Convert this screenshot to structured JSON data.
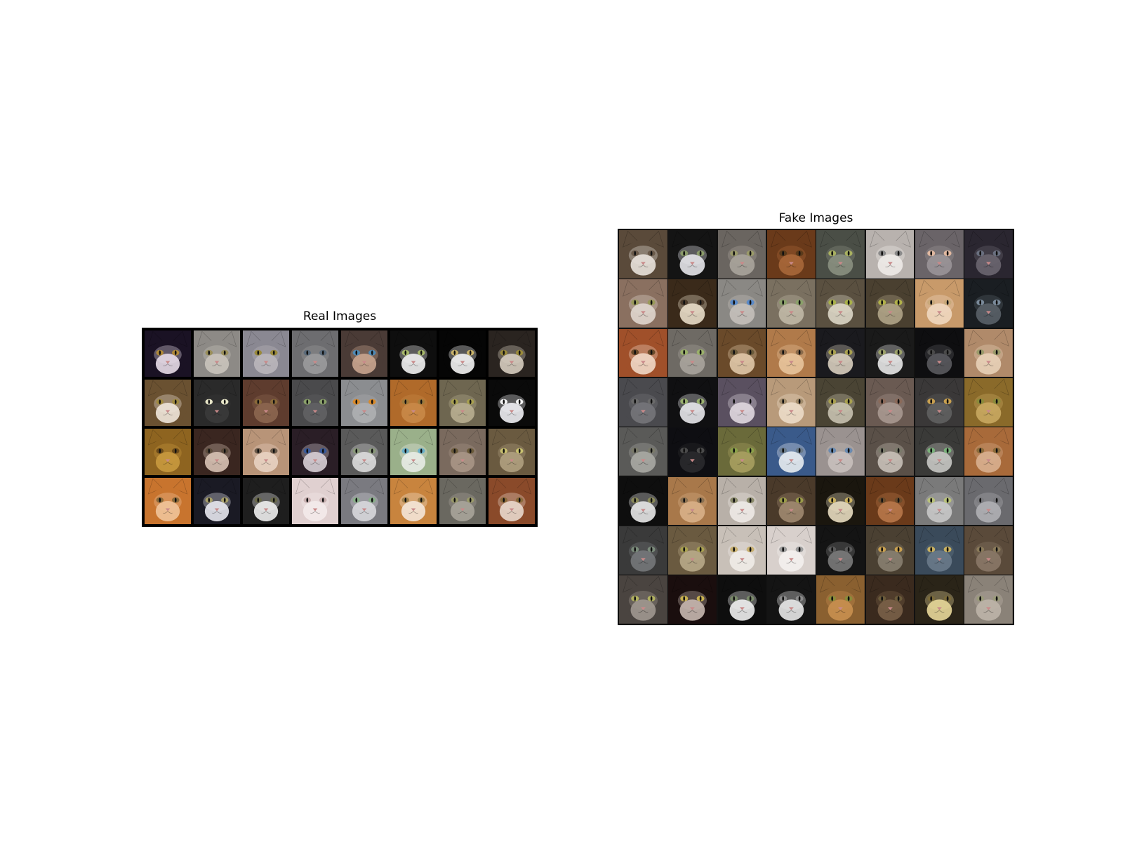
{
  "real": {
    "title": "Real Images",
    "cols": 8,
    "rows": 4,
    "tiles": [
      {
        "fur": "#1a1224",
        "face": "#e8dde8",
        "eye": "#b08a3a"
      },
      {
        "fur": "#8d8a86",
        "face": "#c9c3bb",
        "eye": "#9a8f5a"
      },
      {
        "fur": "#8a8892",
        "face": "#b9b6bb",
        "eye": "#9a8a3a"
      },
      {
        "fur": "#6d6d70",
        "face": "#9a9a9c",
        "eye": "#5a6a7a"
      },
      {
        "fur": "#4a3b36",
        "face": "#c9a58f",
        "eye": "#4f8ab5"
      },
      {
        "fur": "#0e0e0e",
        "face": "#f2f2f2",
        "eye": "#a7b86a"
      },
      {
        "fur": "#050505",
        "face": "#f4f4f4",
        "eye": "#c9b36a"
      },
      {
        "fur": "#2a2420",
        "face": "#d6cdbf",
        "eye": "#9a8a3a"
      },
      {
        "fur": "#6a5131",
        "face": "#efe6da",
        "eye": "#a08a40"
      },
      {
        "fur": "#2a2a2a",
        "face": "#3a3a3a",
        "eye": "#e8e6c8"
      },
      {
        "fur": "#5e3c2e",
        "face": "#8c6650",
        "eye": "#8a6a3a"
      },
      {
        "fur": "#4a4a4c",
        "face": "#626264",
        "eye": "#8aa06a"
      },
      {
        "fur": "#8b8d90",
        "face": "#aeb0b2",
        "eye": "#d98a2a"
      },
      {
        "fur": "#b06a2a",
        "face": "#c98a48",
        "eye": "#a07a3a"
      },
      {
        "fur": "#6e6650",
        "face": "#b8ae90",
        "eye": "#a8a050"
      },
      {
        "fur": "#0a0a0a",
        "face": "#f0f0f4",
        "eye": "#f4f4f4"
      },
      {
        "fur": "#8e6420",
        "face": "#c8993e",
        "eye": "#6a4a1a"
      },
      {
        "fur": "#3a2620",
        "face": "#d8c2b4",
        "eye": "#5a4a3a"
      },
      {
        "fur": "#b89478",
        "face": "#e8d2c2",
        "eye": "#6a5a4a"
      },
      {
        "fur": "#2a1e26",
        "face": "#d8cfd6",
        "eye": "#3a5a9a"
      },
      {
        "fur": "#5a5a5a",
        "face": "#dcdcdc",
        "eye": "#8a9a7a"
      },
      {
        "fur": "#9ab08a",
        "face": "#e8ece6",
        "eye": "#6ab0c8"
      },
      {
        "fur": "#7a6a5e",
        "face": "#a89686",
        "eye": "#6a5a3a"
      },
      {
        "fur": "#6a5a40",
        "face": "#b0a080",
        "eye": "#c8c070"
      },
      {
        "fur": "#c8742e",
        "face": "#f0c49a",
        "eye": "#8a6a3a"
      },
      {
        "fur": "#1a1a24",
        "face": "#e8e8f0",
        "eye": "#a8a06a"
      },
      {
        "fur": "#1e1e1e",
        "face": "#eeeeee",
        "eye": "#6a6a4a"
      },
      {
        "fur": "#e0d0d0",
        "face": "#f4eaea",
        "eye": "#c8b0b0"
      },
      {
        "fur": "#7a7a80",
        "face": "#d8d8dc",
        "eye": "#8ab08a"
      },
      {
        "fur": "#c8843e",
        "face": "#f4e6d8",
        "eye": "#a0804a"
      },
      {
        "fur": "#6a6860",
        "face": "#a8a49a",
        "eye": "#9a9a6a"
      },
      {
        "fur": "#8a4a2a",
        "face": "#e8d8cc",
        "eye": "#8a6a3a"
      }
    ]
  },
  "fake": {
    "title": "Fake Images",
    "cols": 8,
    "rows": 8,
    "tiles": [
      {
        "fur": "#5a4a3a",
        "face": "#e8e2dc",
        "eye": "#6a5a4a"
      },
      {
        "fur": "#141414",
        "face": "#e6e6ea",
        "eye": "#8a9a6a"
      },
      {
        "fur": "#6a6560",
        "face": "#aaa49c",
        "eye": "#9a9a6a"
      },
      {
        "fur": "#6a3a1a",
        "face": "#a8683a",
        "eye": "#5a3a1a"
      },
      {
        "fur": "#4a4e46",
        "face": "#8a9080",
        "eye": "#a8b060"
      },
      {
        "fur": "#b8b2ae",
        "face": "#eeeae8",
        "eye": "#8a8a8a"
      },
      {
        "fur": "#6a6468",
        "face": "#9a9498",
        "eye": "#e0b8a0"
      },
      {
        "fur": "#2a2630",
        "face": "#6a6670",
        "eye": "#6a7080"
      },
      {
        "fur": "#8a7060",
        "face": "#e0d6ce",
        "eye": "#9a9a5a"
      },
      {
        "fur": "#3a2a1a",
        "face": "#e8dcc8",
        "eye": "#4a3a2a"
      },
      {
        "fur": "#8a8884",
        "face": "#c4c0ba",
        "eye": "#5a8ac8"
      },
      {
        "fur": "#7a7060",
        "face": "#c0b8a6",
        "eye": "#8aa06a"
      },
      {
        "fur": "#5a5040",
        "face": "#dcd6c6",
        "eye": "#a8b04a"
      },
      {
        "fur": "#4a4030",
        "face": "#b0a488",
        "eye": "#b0b04a"
      },
      {
        "fur": "#c89a6a",
        "face": "#f0d8c0",
        "eye": "#c8a87a"
      },
      {
        "fur": "#1a1e22",
        "face": "#5a6068",
        "eye": "#7a8a9a"
      },
      {
        "fur": "#a0502a",
        "face": "#f0d8c6",
        "eye": "#6a4a2a"
      },
      {
        "fur": "#6e6a64",
        "face": "#a8a49c",
        "eye": "#9ab06a"
      },
      {
        "fur": "#6a4a2a",
        "face": "#e0c8a8",
        "eye": "#6a5a3a"
      },
      {
        "fur": "#b07a4a",
        "face": "#e8c49c",
        "eye": "#8a6a4a"
      },
      {
        "fur": "#1a1a1e",
        "face": "#d8cebe",
        "eye": "#a8a050"
      },
      {
        "fur": "#1a1a1a",
        "face": "#e8e8e8",
        "eye": "#9aa06a"
      },
      {
        "fur": "#0e0e10",
        "face": "#5a5a5e",
        "eye": "#4a4a4a"
      },
      {
        "fur": "#b08a6a",
        "face": "#e8d0b8",
        "eye": "#9a9a6a"
      },
      {
        "fur": "#4a4a4e",
        "face": "#76767a",
        "eye": "#6a6a6a"
      },
      {
        "fur": "#101012",
        "face": "#e8e8ec",
        "eye": "#9ab070"
      },
      {
        "fur": "#5a5060",
        "face": "#e0d8e0",
        "eye": "#8a8090"
      },
      {
        "fur": "#b89a7a",
        "face": "#ecdcc8",
        "eye": "#a08a6a"
      },
      {
        "fur": "#4a4434",
        "face": "#c8c2b0",
        "eye": "#a8a050"
      },
      {
        "fur": "#6a5a52",
        "face": "#a89890",
        "eye": "#8a6a5a"
      },
      {
        "fur": "#3a3838",
        "face": "#606060",
        "eye": "#c8a050"
      },
      {
        "fur": "#8a6a2a",
        "face": "#c8a860",
        "eye": "#8a8a3a"
      },
      {
        "fur": "#5a5a58",
        "face": "#a8a8a4",
        "eye": "#7a7a6a"
      },
      {
        "fur": "#0e0e12",
        "face": "#2a2a2e",
        "eye": "#4a4a4a"
      },
      {
        "fur": "#6a6a3a",
        "face": "#a8a060",
        "eye": "#8aa04a"
      },
      {
        "fur": "#3a5a8a",
        "face": "#e8ecf0",
        "eye": "#6a7a8a"
      },
      {
        "fur": "#9a9290",
        "face": "#c8c0bc",
        "eye": "#6a8ab0"
      },
      {
        "fur": "#5a5048",
        "face": "#c8c0b8",
        "eye": "#7a7a6a"
      },
      {
        "fur": "#3a3a38",
        "face": "#c8c8c4",
        "eye": "#7ab07a"
      },
      {
        "fur": "#a86a3a",
        "face": "#d8b090",
        "eye": "#8a6a3a"
      },
      {
        "fur": "#0e0e0e",
        "face": "#e8e8e8",
        "eye": "#8a8a5a"
      },
      {
        "fur": "#a8784a",
        "face": "#d8b088",
        "eye": "#8a7050"
      },
      {
        "fur": "#b8b0a8",
        "face": "#eeeae6",
        "eye": "#8a8a6a"
      },
      {
        "fur": "#4a3a2a",
        "face": "#a08a70",
        "eye": "#9a9a4a"
      },
      {
        "fur": "#1a160e",
        "face": "#e8dcc0",
        "eye": "#c8b060"
      },
      {
        "fur": "#6a3a1a",
        "face": "#b8784a",
        "eye": "#6a4a2a"
      },
      {
        "fur": "#7a7a7a",
        "face": "#c8c8c8",
        "eye": "#b8c07a"
      },
      {
        "fur": "#6a6a6e",
        "face": "#b0b0b4",
        "eye": "#7a7a7e"
      },
      {
        "fur": "#3a3a3a",
        "face": "#76787a",
        "eye": "#7a8a7a"
      },
      {
        "fur": "#6a5a40",
        "face": "#b8a888",
        "eye": "#a8a050"
      },
      {
        "fur": "#c8c0b8",
        "face": "#f0ece8",
        "eye": "#c8b070"
      },
      {
        "fur": "#d8d0cc",
        "face": "#f4f0ee",
        "eye": "#9a9a9a"
      },
      {
        "fur": "#141414",
        "face": "#7a7a7a",
        "eye": "#5a5a5a"
      },
      {
        "fur": "#4a4032",
        "face": "#888070",
        "eye": "#c8a050"
      },
      {
        "fur": "#3a4a5a",
        "face": "#6a7a8a",
        "eye": "#c8b060"
      },
      {
        "fur": "#5a4a3a",
        "face": "#8a7868",
        "eye": "#8a7a5a"
      },
      {
        "fur": "#4a4440",
        "face": "#a09890",
        "eye": "#b0b060"
      },
      {
        "fur": "#1a0e0e",
        "face": "#c8b8b0",
        "eye": "#c8b050"
      },
      {
        "fur": "#0e0e0e",
        "face": "#f0f0f0",
        "eye": "#7a8a6a"
      },
      {
        "fur": "#141414",
        "face": "#e8e8e8",
        "eye": "#8a8a8a"
      },
      {
        "fur": "#8a6030",
        "face": "#c89050",
        "eye": "#8a8a3a"
      },
      {
        "fur": "#3a2a1e",
        "face": "#7a6048",
        "eye": "#6a5a3a"
      },
      {
        "fur": "#2a2418",
        "face": "#e8d89a",
        "eye": "#7a6a3a"
      },
      {
        "fur": "#8a8278",
        "face": "#bcb4a8",
        "eye": "#9a9a7a"
      }
    ]
  }
}
